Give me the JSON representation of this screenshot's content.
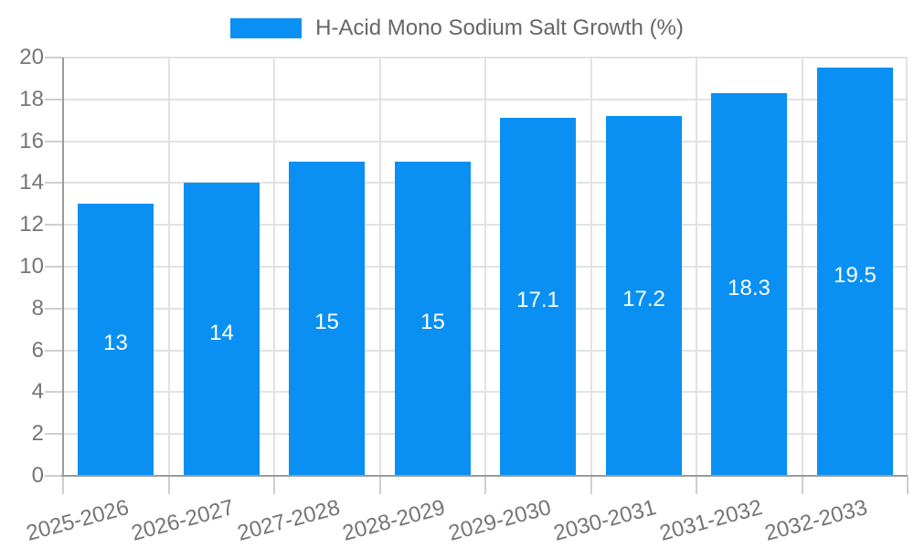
{
  "legend": {
    "label": "H-Acid Mono Sodium Salt Growth (%)"
  },
  "chart_data": {
    "type": "bar",
    "title": "",
    "xlabel": "",
    "ylabel": "",
    "legend": [
      "H-Acid Mono Sodium Salt Growth (%)"
    ],
    "legend_position": "top-center",
    "grid": true,
    "categories": [
      "2025-2026",
      "2026-2027",
      "2027-2028",
      "2028-2029",
      "2029-2030",
      "2030-2031",
      "2031-2032",
      "2032-2033"
    ],
    "values": [
      13,
      14,
      15,
      15,
      17.1,
      17.2,
      18.3,
      19.5
    ],
    "value_labels": [
      "13",
      "14",
      "15",
      "15",
      "17.1",
      "17.2",
      "18.3",
      "19.5"
    ],
    "ylim": [
      0,
      20
    ],
    "yticks": [
      0,
      2,
      4,
      6,
      8,
      10,
      12,
      14,
      16,
      18,
      20
    ],
    "colors": {
      "bar": "#0a90f2",
      "grid": "#e2e2e2",
      "axis": "#9b9b9b",
      "tick": "#cfcfcf",
      "tick_text": "#757575",
      "legend_text": "#666666",
      "value_text": "#ffffff",
      "background": "#ffffff"
    }
  }
}
